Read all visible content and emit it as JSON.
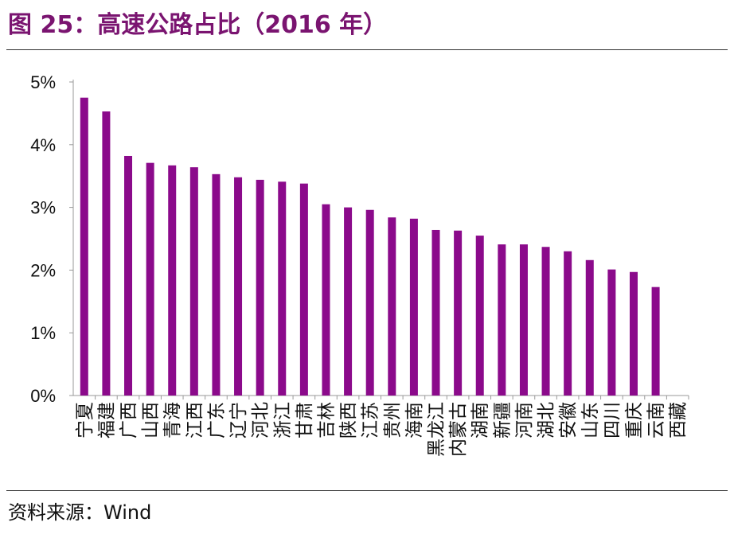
{
  "title": "图 25：高速公路占比（2016 年）",
  "source": "资料来源：Wind",
  "chart_data": {
    "type": "bar",
    "title": "",
    "xlabel": "",
    "ylabel": "",
    "ylim": [
      0,
      5
    ],
    "yticks": [
      "0%",
      "1%",
      "2%",
      "3%",
      "4%",
      "5%"
    ],
    "grid": false,
    "bar_color": "#8b0a8b",
    "categories": [
      "宁夏",
      "福建",
      "广西",
      "山西",
      "青海",
      "江西",
      "广东",
      "辽宁",
      "河北",
      "浙江",
      "甘肃",
      "吉林",
      "陕西",
      "江苏",
      "贵州",
      "海南",
      "黑龙江",
      "内蒙古",
      "湖南",
      "新疆",
      "河南",
      "湖北",
      "安徽",
      "山东",
      "四川",
      "重庆",
      "云南",
      "西藏"
    ],
    "values": [
      4.75,
      4.53,
      3.82,
      3.71,
      3.67,
      3.64,
      3.53,
      3.48,
      3.44,
      3.41,
      3.38,
      3.05,
      3.0,
      2.96,
      2.84,
      2.82,
      2.64,
      2.63,
      2.55,
      2.41,
      2.41,
      2.37,
      2.3,
      2.16,
      2.01,
      1.97,
      1.73,
      0
    ]
  }
}
